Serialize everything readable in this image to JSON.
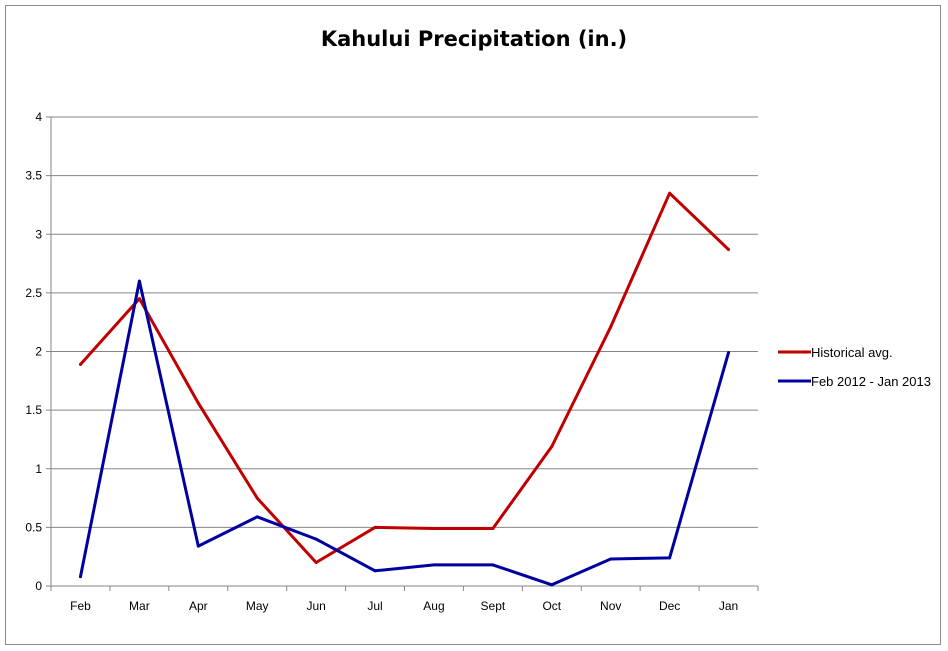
{
  "chart_data": {
    "type": "line",
    "title": "Kahului Precipitation (in.)",
    "xlabel": "",
    "ylabel": "",
    "categories": [
      "Feb",
      "Mar",
      "Apr",
      "May",
      "Jun",
      "Jul",
      "Aug",
      "Sept",
      "Oct",
      "Nov",
      "Dec",
      "Jan"
    ],
    "ylim": [
      0,
      4
    ],
    "yticks": [
      "0",
      "0.5",
      "1",
      "1.5",
      "2",
      "2.5",
      "3",
      "3.5",
      "4"
    ],
    "grid": true,
    "legend_position": "right",
    "series": [
      {
        "name": "Historical avg.",
        "color": "#c00000",
        "values": [
          1.89,
          2.45,
          1.56,
          0.75,
          0.2,
          0.5,
          0.49,
          0.49,
          1.19,
          2.21,
          3.35,
          2.87
        ]
      },
      {
        "name": "Feb 2012 - Jan 2013",
        "color": "#0000a0",
        "values": [
          0.08,
          2.6,
          0.34,
          0.59,
          0.4,
          0.13,
          0.18,
          0.18,
          0.01,
          0.23,
          0.24,
          1.99
        ]
      }
    ]
  }
}
